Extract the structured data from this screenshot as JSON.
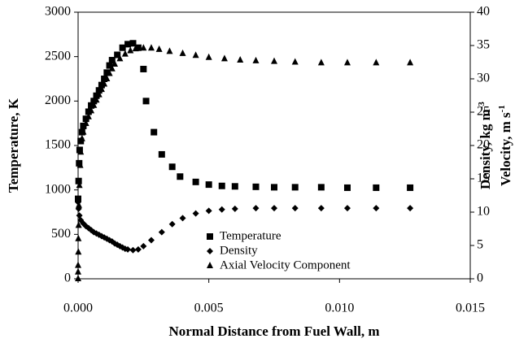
{
  "chart_data": {
    "type": "scatter",
    "xlabel": "Normal Distance from Fuel Wall, m",
    "ylabel": "Temperature, K",
    "y2label": {
      "density": "Density, kg m",
      "density_sup": "-3",
      "velocity": "Velocity, m s",
      "velocity_sup": "-1"
    },
    "xlim": [
      0,
      0.015
    ],
    "xticks": [
      {
        "value": 0,
        "label": "0.000"
      },
      {
        "value": 0.005,
        "label": "0.005"
      },
      {
        "value": 0.01,
        "label": "0.010"
      },
      {
        "value": 0.015,
        "label": "0.015"
      }
    ],
    "ylim": [
      0,
      3000
    ],
    "yticks": [
      0,
      500,
      1000,
      1500,
      2000,
      2500,
      3000
    ],
    "y2lim": [
      0,
      40
    ],
    "y2ticks": [
      0,
      5,
      10,
      15,
      20,
      25,
      30,
      35,
      40
    ],
    "legend": "lower-center",
    "series": [
      {
        "name": "Temperature",
        "marker": "square",
        "color": "#000000",
        "x": [
          0,
          2e-05,
          4e-05,
          6e-05,
          0.0001,
          0.00015,
          0.0002,
          0.0003,
          0.0004,
          0.0005,
          0.0006,
          0.0007,
          0.0008,
          0.0009,
          0.001,
          0.0011,
          0.0012,
          0.0013,
          0.0015,
          0.0017,
          0.0019,
          0.0021,
          0.0023,
          0.0025,
          0.0026,
          0.0029,
          0.0032,
          0.0036,
          0.0039,
          0.0045,
          0.005,
          0.0055,
          0.006,
          0.0068,
          0.0075,
          0.0083,
          0.0093,
          0.0103,
          0.0114,
          0.0127
        ],
        "values": [
          900,
          1100,
          1300,
          1450,
          1550,
          1650,
          1720,
          1800,
          1880,
          1950,
          2000,
          2060,
          2120,
          2180,
          2250,
          2320,
          2400,
          2460,
          2520,
          2600,
          2640,
          2650,
          2600,
          2360,
          2000,
          1650,
          1400,
          1260,
          1150,
          1090,
          1060,
          1045,
          1040,
          1035,
          1030,
          1030,
          1030,
          1025,
          1025,
          1025
        ]
      },
      {
        "name": "Density",
        "marker": "diamond",
        "color": "#000000",
        "axis": "y2",
        "x": [
          0,
          2e-05,
          5e-05,
          0.0001,
          0.0002,
          0.0003,
          0.0004,
          0.0005,
          0.0006,
          0.0007,
          0.0008,
          0.0009,
          0.001,
          0.0011,
          0.0012,
          0.0013,
          0.0014,
          0.0015,
          0.0016,
          0.0017,
          0.0018,
          0.0019,
          0.0021,
          0.0023,
          0.0025,
          0.0028,
          0.0032,
          0.0036,
          0.004,
          0.0045,
          0.005,
          0.0055,
          0.006,
          0.0068,
          0.0075,
          0.0083,
          0.0093,
          0.0103,
          0.0114,
          0.0127
        ],
        "values": [
          11.5,
          10.5,
          9.5,
          8.8,
          8.3,
          7.9,
          7.6,
          7.3,
          7.0,
          6.8,
          6.6,
          6.4,
          6.2,
          6.0,
          5.8,
          5.6,
          5.3,
          5.1,
          4.9,
          4.7,
          4.5,
          4.4,
          4.3,
          4.4,
          4.9,
          5.8,
          7.0,
          8.2,
          9.1,
          9.8,
          10.2,
          10.4,
          10.5,
          10.6,
          10.6,
          10.6,
          10.6,
          10.6,
          10.6,
          10.6
        ]
      },
      {
        "name": "Axial Velocity Component",
        "marker": "triangle",
        "color": "#000000",
        "axis": "y2",
        "x": [
          0,
          0,
          0,
          1e-05,
          1e-05,
          2e-05,
          3e-05,
          5e-05,
          8e-05,
          0.0001,
          0.00015,
          0.0002,
          0.0003,
          0.0004,
          0.0005,
          0.0006,
          0.0007,
          0.0008,
          0.0009,
          0.001,
          0.0011,
          0.0012,
          0.0013,
          0.0014,
          0.0016,
          0.0018,
          0.002,
          0.0022,
          0.0025,
          0.0028,
          0.0031,
          0.0035,
          0.004,
          0.0045,
          0.005,
          0.0056,
          0.0062,
          0.0068,
          0.0075,
          0.0083,
          0.0093,
          0.0103,
          0.0114,
          0.0127
        ],
        "values": [
          0,
          1,
          2,
          4,
          6,
          8,
          11,
          14,
          17,
          19,
          21,
          22,
          23.3,
          24.3,
          25.2,
          26,
          26.8,
          27.6,
          28.4,
          29.2,
          30,
          30.8,
          31.5,
          32.2,
          33,
          33.7,
          34.2,
          34.5,
          34.6,
          34.6,
          34.4,
          34.1,
          33.8,
          33.5,
          33.2,
          33,
          32.8,
          32.7,
          32.6,
          32.5,
          32.4,
          32.4,
          32.4,
          32.4
        ]
      }
    ]
  }
}
